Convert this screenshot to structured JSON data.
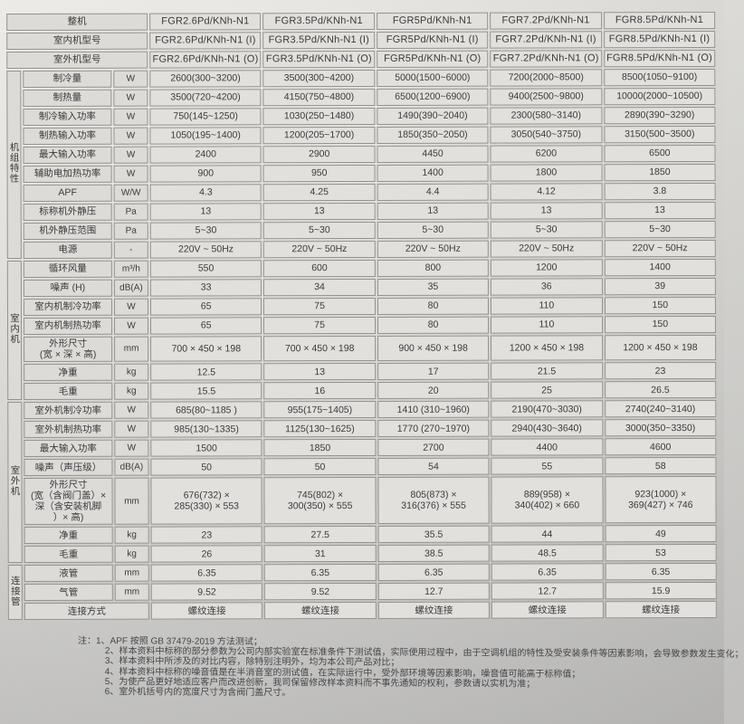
{
  "models_header": {
    "rows": [
      {
        "label": "整机",
        "values": [
          "FGR2.6Pd/KNh-N1",
          "FGR3.5Pd/KNh-N1",
          "FGR5Pd/KNh-N1",
          "FGR7.2Pd/KNh-N1",
          "FGR8.5Pd/KNh-N1"
        ]
      },
      {
        "label": "室内机型号",
        "values": [
          "FGR2.6Pd/KNh-N1 (I)",
          "FGR3.5Pd/KNh-N1 (I)",
          "FGR5Pd/KNh-N1 (I)",
          "FGR7.2Pd/KNh-N1 (I)",
          "FGR8.5Pd/KNh-N1 (I)"
        ]
      },
      {
        "label": "室外机型号",
        "values": [
          "FGR2.6Pd/KNh-N1 (O)",
          "FGR3.5Pd/KNh-N1 (O)",
          "FGR5Pd/KNh-N1 (O)",
          "FGR7.2Pd/KNh-N1 (O)",
          "FGR8.5Pd/KNh-N1 (O)"
        ]
      }
    ]
  },
  "groups": [
    {
      "name": "机组特性",
      "rows": [
        {
          "label": "制冷量",
          "unit": "W",
          "values": [
            "2600(300~3200)",
            "3500(300~4200)",
            "5000(1500~6000)",
            "7200(2000~8500)",
            "8500(1050~9100)"
          ]
        },
        {
          "label": "制热量",
          "unit": "W",
          "values": [
            "3500(720~4200)",
            "4150(750~4800)",
            "6500(1200~6900)",
            "9400(2500~9800)",
            "10000(2000~10500)"
          ]
        },
        {
          "label": "制冷输入功率",
          "unit": "W",
          "values": [
            "750(145~1250)",
            "1030(250~1480)",
            "1490(390~2040)",
            "2300(580~3140)",
            "2890(390~3290)"
          ]
        },
        {
          "label": "制热输入功率",
          "unit": "W",
          "values": [
            "1050(195~1400)",
            "1200(205~1700)",
            "1850(350~2050)",
            "3050(540~3750)",
            "3150(500~3500)"
          ]
        },
        {
          "label": "最大输入功率",
          "unit": "W",
          "values": [
            "2400",
            "2900",
            "4450",
            "6200",
            "6500"
          ]
        },
        {
          "label": "辅助电加热功率",
          "unit": "W",
          "values": [
            "900",
            "950",
            "1400",
            "1800",
            "1850"
          ]
        },
        {
          "label": "APF",
          "unit": "W/W",
          "values": [
            "4.3",
            "4.25",
            "4.4",
            "4.12",
            "3.8"
          ]
        },
        {
          "label": "标称机外静压",
          "unit": "Pa",
          "values": [
            "13",
            "13",
            "13",
            "13",
            "13"
          ]
        },
        {
          "label": "机外静压范围",
          "unit": "Pa",
          "values": [
            "5~30",
            "5~30",
            "5~30",
            "5~30",
            "5~30"
          ]
        },
        {
          "label": "电源",
          "unit": "-",
          "values": [
            "220V ~ 50Hz",
            "220V ~ 50Hz",
            "220V ~ 50Hz",
            "220V ~ 50Hz",
            "220V ~ 50Hz"
          ]
        }
      ]
    },
    {
      "name": "室内机",
      "rows": [
        {
          "label": "循环风量",
          "unit": "m³/h",
          "values": [
            "550",
            "600",
            "800",
            "1200",
            "1400"
          ]
        },
        {
          "label": "噪声 (H)",
          "unit": "dB(A)",
          "values": [
            "33",
            "34",
            "35",
            "36",
            "39"
          ]
        },
        {
          "label": "室内机制冷功率",
          "unit": "W",
          "values": [
            "65",
            "75",
            "80",
            "110",
            "150"
          ]
        },
        {
          "label": "室内机制热功率",
          "unit": "W",
          "values": [
            "65",
            "75",
            "80",
            "110",
            "150"
          ]
        },
        {
          "label": "外形尺寸\n(宽 × 深 × 高)",
          "unit": "mm",
          "values": [
            "700 × 450 × 198",
            "700 × 450 × 198",
            "900 × 450 × 198",
            "1200 × 450 × 198",
            "1200 × 450 × 198"
          ]
        },
        {
          "label": "净重",
          "unit": "kg",
          "values": [
            "12.5",
            "13",
            "17",
            "21.5",
            "23"
          ]
        },
        {
          "label": "毛重",
          "unit": "kg",
          "values": [
            "15.5",
            "16",
            "20",
            "25",
            "26.5"
          ]
        }
      ]
    },
    {
      "name": "室外机",
      "rows": [
        {
          "label": "室外机制冷功率",
          "unit": "W",
          "values": [
            "685(80~1185 )",
            "955(175~1405)",
            "1410 (310~1960)",
            "2190(470~3030)",
            "2740(240~3140)"
          ]
        },
        {
          "label": "室外机制热功率",
          "unit": "W",
          "values": [
            "985(130~1335)",
            "1125(130~1625)",
            "1770 (270~1970)",
            "2940(430~3640)",
            "3000(350~3350)"
          ]
        },
        {
          "label": "最大输入功率",
          "unit": "W",
          "values": [
            "1500",
            "1850",
            "2700",
            "4400",
            "4600"
          ]
        },
        {
          "label": "噪声（声压级）",
          "unit": "dB(A)",
          "values": [
            "50",
            "50",
            "54",
            "55",
            "58"
          ]
        },
        {
          "label": "外形尺寸\n(宽（含阀门盖）×\n深（含安装机脚\n）× 高)",
          "unit": "mm",
          "values": [
            "676(732) ×\n285(330) × 553",
            "745(802) ×\n300(350) × 555",
            "805(873) ×\n316(376) × 555",
            "889(958) ×\n340(402) × 660",
            "923(1000) ×\n369(427) × 746"
          ]
        },
        {
          "label": "净重",
          "unit": "kg",
          "values": [
            "23",
            "27.5",
            "35.5",
            "44",
            "49"
          ]
        },
        {
          "label": "毛重",
          "unit": "kg",
          "values": [
            "26",
            "31",
            "38.5",
            "48.5",
            "53"
          ]
        }
      ]
    },
    {
      "name": "连接管",
      "rows": [
        {
          "label": "液管",
          "unit": "mm",
          "values": [
            "6.35",
            "6.35",
            "6.35",
            "6.35",
            "6.35"
          ]
        },
        {
          "label": "气管",
          "unit": "mm",
          "values": [
            "9.52",
            "9.52",
            "12.7",
            "12.7",
            "15.9"
          ]
        },
        {
          "label": "连接方式",
          "unit": null,
          "values": [
            "螺纹连接",
            "螺纹连接",
            "螺纹连接",
            "螺纹连接",
            "螺纹连接"
          ]
        }
      ]
    }
  ],
  "notes": [
    "注：1、APF 按照 GB 37479-2019 方法测试；",
    "2、样本资料中标称的部分参数为公司内部实验室在标准条件下测试值，实际使用过程中，由于空调机组的特性及受安装条件等因素影响，会导致参数发生变化；",
    "3、样本资料中所涉及的对比内容，除特别注明外，均为本公司产品对比；",
    "4、样本资料中标称的噪音值是在半消音室的测试值，在实际运行中，受外部环境等因素影响，噪音值可能高于标称值；",
    "5、为使产品更好地适应客户而改进创新，我司保留修改样本资料而不事先通知的权利，参数请以实机为准；",
    "6、室外机括号内的宽度尺寸为含阀门盖尺寸。"
  ]
}
